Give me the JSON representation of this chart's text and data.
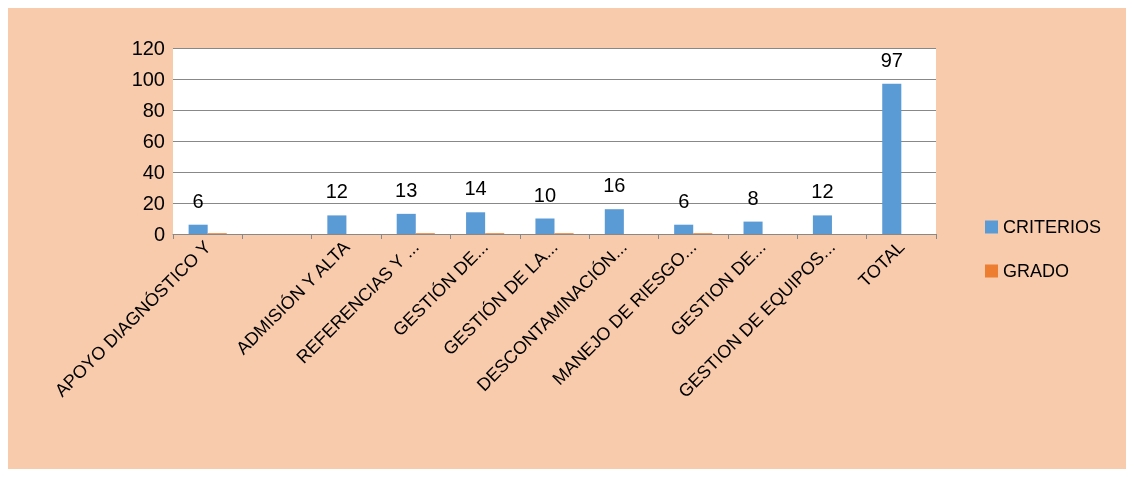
{
  "chart_data": {
    "type": "bar",
    "categories": [
      "APOYO DIAGNÓSTICO Y",
      null,
      "ADMISIÓN Y ALTA",
      "REFERENCIAS Y ...",
      "GESTIÓN DE...",
      "GESTIÓN DE LA...",
      "DESCONTAMINACIÓN...",
      "MANEJO DE RIESGO...",
      "GESTION DE...",
      "GESTION DE EQUIPOS...",
      "TOTAL"
    ],
    "series": [
      {
        "name": "CRITERIOS",
        "color": "#5b9bd5",
        "values": [
          6,
          null,
          12,
          13,
          14,
          10,
          16,
          6,
          8,
          12,
          97
        ],
        "value_labels": [
          "6",
          null,
          "12",
          "13",
          "14",
          "10",
          "16",
          "6",
          "8",
          "12",
          "97"
        ]
      },
      {
        "name": "GRADO",
        "color": "#ed7d31",
        "values": [
          0.5,
          null,
          null,
          0.5,
          0.5,
          0.5,
          null,
          0.5,
          null,
          null,
          null
        ]
      }
    ],
    "ylim": [
      0,
      120
    ],
    "yticks": [
      0,
      20,
      40,
      60,
      80,
      100,
      120
    ],
    "grid": "y",
    "legend": "right"
  }
}
